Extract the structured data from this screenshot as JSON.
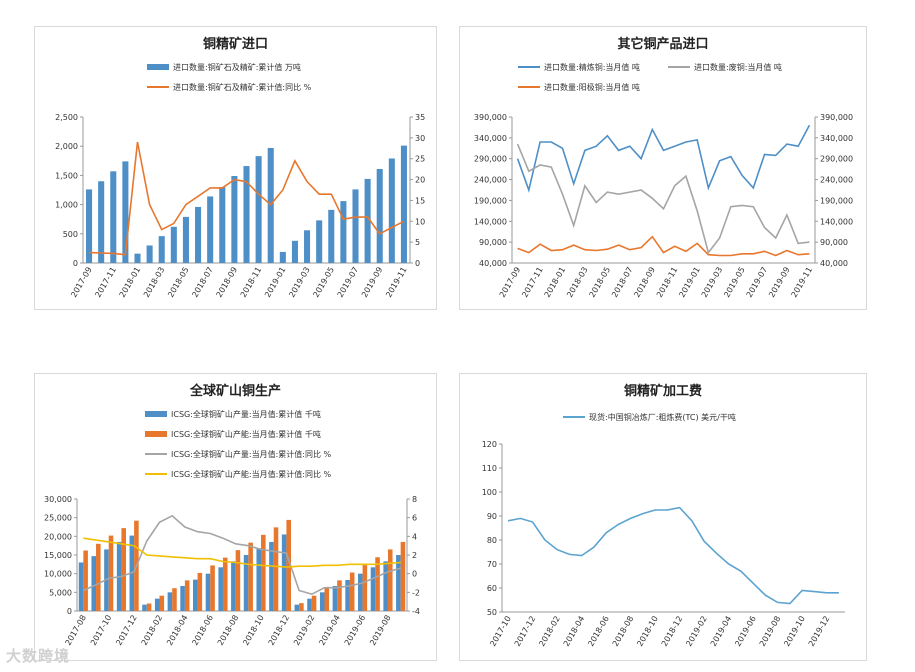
{
  "chart_data": [
    {
      "type": "bar",
      "title": "铜精矿进口",
      "categories": [
        "2017-09",
        "2017-10",
        "2017-11",
        "2017-12",
        "2018-01",
        "2018-02",
        "2018-03",
        "2018-04",
        "2018-05",
        "2018-06",
        "2018-07",
        "2018-08",
        "2018-09",
        "2018-10",
        "2018-11",
        "2018-12",
        "2019-01",
        "2019-02",
        "2019-03",
        "2019-04",
        "2019-05",
        "2019-06",
        "2019-07",
        "2019-08",
        "2019-09",
        "2019-10",
        "2019-11"
      ],
      "tick_labels": [
        "2017-09",
        "2017-11",
        "2018-01",
        "2018-03",
        "2018-05",
        "2018-07",
        "2018-09",
        "2018-11",
        "2019-01",
        "2019-03",
        "2019-05",
        "2019-07",
        "2019-09",
        "2019-11"
      ],
      "series": [
        {
          "name": "进口数量:铜矿石及精矿:累计值 万吨",
          "type": "bar",
          "axis": "left",
          "color": "#4e8fc7",
          "values": [
            1260,
            1400,
            1570,
            1740,
            160,
            300,
            460,
            620,
            790,
            960,
            1140,
            1300,
            1490,
            1660,
            1830,
            1970,
            190,
            380,
            560,
            730,
            910,
            1060,
            1260,
            1440,
            1610,
            1790,
            2010
          ]
        },
        {
          "name": "进口数量:铜矿石及精矿:累计值:同比 %",
          "type": "line",
          "axis": "right",
          "color": "#e8772e",
          "values": [
            2.5,
            2.4,
            2.3,
            2.0,
            29,
            14,
            8,
            9.5,
            14,
            16,
            18,
            18,
            20,
            19.5,
            16.5,
            14,
            17.5,
            24.5,
            19.5,
            16.5,
            16.5,
            10.5,
            11,
            11,
            7,
            8.5,
            10
          ]
        }
      ],
      "ylim": [
        0,
        2500
      ],
      "yticks": [
        0,
        500,
        1000,
        1500,
        2000,
        2500
      ],
      "ytick_labels": [
        "0",
        "500",
        "1,000",
        "1,500",
        "2,000",
        "2,500"
      ],
      "y2lim": [
        0,
        35
      ],
      "y2ticks": [
        0,
        5,
        10,
        15,
        20,
        25,
        30,
        35
      ],
      "y2tick_labels": [
        "0",
        "5",
        "10",
        "15",
        "20",
        "25",
        "30",
        "35"
      ],
      "legend": "top-center"
    },
    {
      "type": "line",
      "title": "其它铜产品进口",
      "categories": [
        "2017-09",
        "2017-10",
        "2017-11",
        "2017-12",
        "2018-01",
        "2018-02",
        "2018-03",
        "2018-04",
        "2018-05",
        "2018-06",
        "2018-07",
        "2018-08",
        "2018-09",
        "2018-10",
        "2018-11",
        "2018-12",
        "2019-01",
        "2019-02",
        "2019-03",
        "2019-04",
        "2019-05",
        "2019-06",
        "2019-07",
        "2019-08",
        "2019-09",
        "2019-10",
        "2019-11"
      ],
      "tick_labels": [
        "2017-09",
        "2017-11",
        "2018-01",
        "2018-03",
        "2018-05",
        "2018-07",
        "2018-09",
        "2018-11",
        "2019-01",
        "2019-03",
        "2019-05",
        "2019-07",
        "2019-09",
        "2019-11"
      ],
      "series": [
        {
          "name": "进口数量:精炼铜:当月值 吨",
          "axis": "left",
          "color": "#4e8fc7",
          "values": [
            290000,
            215000,
            330000,
            330000,
            315000,
            230000,
            310000,
            320000,
            345000,
            310000,
            320000,
            290000,
            360000,
            310000,
            320000,
            330000,
            335000,
            220000,
            285000,
            295000,
            250000,
            220000,
            300000,
            298000,
            325000,
            320000,
            370000
          ]
        },
        {
          "name": "进口数量:废铜:当月值 吨",
          "axis": "right",
          "color": "#a5a5a5",
          "values": [
            325000,
            260000,
            275000,
            270000,
            205000,
            130000,
            225000,
            185000,
            210000,
            205000,
            210000,
            215000,
            195000,
            170000,
            225000,
            248000,
            165000,
            65000,
            100000,
            175000,
            178000,
            175000,
            125000,
            100000,
            155000,
            87000,
            90000
          ]
        },
        {
          "name": "进口数量:阳极铜:当月值 吨",
          "axis": "left",
          "color": "#e8772e",
          "values": [
            75000,
            65000,
            85000,
            70000,
            72000,
            83000,
            72000,
            70000,
            73000,
            83000,
            72000,
            77000,
            103000,
            65000,
            80000,
            68000,
            87000,
            60000,
            58000,
            58000,
            62000,
            62000,
            68000,
            58000,
            70000,
            60000,
            62000
          ]
        }
      ],
      "ylim": [
        40000,
        390000
      ],
      "yticks": [
        40000,
        90000,
        140000,
        190000,
        240000,
        290000,
        340000,
        390000
      ],
      "ytick_labels": [
        "40,000",
        "90,000",
        "140,000",
        "190,000",
        "240,000",
        "290,000",
        "340,000",
        "390,000"
      ],
      "y2lim": [
        40000,
        390000
      ],
      "y2ticks": [
        40000,
        90000,
        140000,
        190000,
        240000,
        290000,
        340000,
        390000
      ],
      "y2tick_labels": [
        "40,000",
        "90,000",
        "140,000",
        "190,000",
        "240,000",
        "290,000",
        "340,000",
        "390,000"
      ],
      "legend": "top-center"
    },
    {
      "type": "bar",
      "title": "全球矿山铜生产",
      "categories": [
        "2017-08",
        "2017-09",
        "2017-10",
        "2017-11",
        "2017-12",
        "2018-01",
        "2018-02",
        "2018-03",
        "2018-04",
        "2018-05",
        "2018-06",
        "2018-07",
        "2018-08",
        "2018-09",
        "2018-10",
        "2018-11",
        "2018-12",
        "2019-01",
        "2019-02",
        "2019-03",
        "2019-04",
        "2019-05",
        "2019-06",
        "2019-07",
        "2019-08",
        "2019-09"
      ],
      "tick_labels": [
        "2017-08",
        "2017-10",
        "2017-12",
        "2018-02",
        "2018-04",
        "2018-06",
        "2018-08",
        "2018-10",
        "2018-12",
        "2019-02",
        "2019-04",
        "2019-06",
        "2019-08"
      ],
      "series": [
        {
          "name": "ICSG:全球铜矿山产量:当月值:累计值 千吨",
          "type": "bar",
          "axis": "left",
          "color": "#4e8fc7",
          "values": [
            13000,
            14700,
            16500,
            18500,
            20200,
            1700,
            3300,
            5000,
            6700,
            8400,
            10000,
            11700,
            13300,
            15000,
            16800,
            18500,
            20500,
            1700,
            3300,
            5000,
            6700,
            8300,
            10000,
            11700,
            13300,
            15000
          ]
        },
        {
          "name": "ICSG:全球铜矿山产能:当月值:累计值 千吨",
          "type": "bar",
          "axis": "left",
          "color": "#e8772e",
          "values": [
            16200,
            18000,
            20200,
            22200,
            24200,
            2000,
            4100,
            6100,
            8200,
            10200,
            12200,
            14300,
            16300,
            18300,
            20400,
            22400,
            24400,
            2100,
            4100,
            6200,
            8200,
            10300,
            12300,
            14400,
            16500,
            18500
          ]
        },
        {
          "name": "ICSG:全球铜矿山产量:当月值:累计值:同比 %",
          "type": "line",
          "axis": "right",
          "color": "#a5a5a5",
          "values": [
            -1.8,
            -1.2,
            -0.5,
            -0.3,
            0.2,
            3.5,
            5.5,
            6.2,
            5,
            4.5,
            4.3,
            3.8,
            3.2,
            3,
            2.6,
            2.4,
            2.2,
            -1.8,
            -2.2,
            -1.5,
            -1.5,
            -1.3,
            -1,
            -0.4,
            0.2,
            0.6
          ]
        },
        {
          "name": "ICSG:全球铜矿山产能:当月值:累计值:同比 %",
          "type": "line",
          "axis": "right",
          "color": "#f0c000",
          "values": [
            3.8,
            3.6,
            3.4,
            3.2,
            3.0,
            2.0,
            1.9,
            1.8,
            1.7,
            1.6,
            1.6,
            1.3,
            1.2,
            1.0,
            0.9,
            0.8,
            0.7,
            0.8,
            0.8,
            0.9,
            0.9,
            1.0,
            1.0,
            1.0,
            1.1,
            1.2
          ]
        }
      ],
      "ylim": [
        0,
        30000
      ],
      "yticks": [
        0,
        5000,
        10000,
        15000,
        20000,
        25000,
        30000
      ],
      "ytick_labels": [
        "0",
        "5,000",
        "10,000",
        "15,000",
        "20,000",
        "25,000",
        "30,000"
      ],
      "y2lim": [
        -4,
        8
      ],
      "y2ticks": [
        -4,
        -2,
        0,
        2,
        4,
        6,
        8
      ],
      "y2tick_labels": [
        "-4",
        "-2",
        "0",
        "2",
        "4",
        "6",
        "8"
      ],
      "legend": "top-center"
    },
    {
      "type": "line",
      "title": "铜精矿加工费",
      "categories": [
        "2017-10",
        "2017-11",
        "2017-12",
        "2018-01",
        "2018-02",
        "2018-03",
        "2018-04",
        "2018-05",
        "2018-06",
        "2018-07",
        "2018-08",
        "2018-09",
        "2018-10",
        "2018-11",
        "2018-12",
        "2019-01",
        "2019-02",
        "2019-03",
        "2019-04",
        "2019-05",
        "2019-06",
        "2019-07",
        "2019-08",
        "2019-09",
        "2019-10",
        "2019-11",
        "2019-12",
        "2020-01"
      ],
      "tick_labels": [
        "2017-10",
        "2017-12",
        "2018-02",
        "2018-04",
        "2018-06",
        "2018-08",
        "2018-10",
        "2018-12",
        "2019-02",
        "2019-04",
        "2019-06",
        "2019-08",
        "2019-10",
        "2019-12"
      ],
      "series": [
        {
          "name": "现货:中国铜冶炼厂:粗炼费(TC) 美元/干吨",
          "axis": "left",
          "color": "#5ba3d0",
          "values": [
            88,
            89,
            87.5,
            80,
            76,
            74,
            73.5,
            77,
            83,
            86.5,
            89,
            91,
            92.5,
            92.5,
            93.5,
            88,
            79.5,
            74.5,
            70,
            67,
            62,
            57,
            54,
            53.5,
            59,
            58.5,
            58,
            58
          ]
        }
      ],
      "ylim": [
        50,
        120
      ],
      "yticks": [
        50,
        60,
        70,
        80,
        90,
        100,
        110,
        120
      ],
      "ytick_labels": [
        "50",
        "60",
        "70",
        "80",
        "90",
        "100",
        "110",
        "120"
      ],
      "legend": "top-center"
    }
  ],
  "watermark": "大数跨境"
}
